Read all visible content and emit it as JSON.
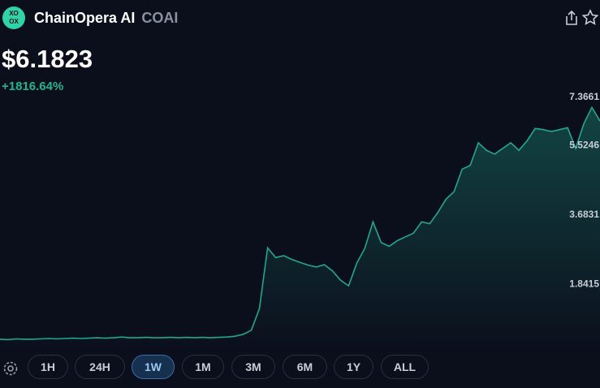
{
  "header": {
    "name": "ChainOpera AI",
    "symbol": "COAI",
    "price": "$6.1823",
    "change": "+1816.64%"
  },
  "chart_data": {
    "type": "area",
    "color": "#1fa88a",
    "values": [
      0.38,
      0.37,
      0.39,
      0.38,
      0.38,
      0.39,
      0.4,
      0.39,
      0.4,
      0.41,
      0.4,
      0.41,
      0.42,
      0.41,
      0.42,
      0.44,
      0.42,
      0.42,
      0.43,
      0.42,
      0.42,
      0.43,
      0.42,
      0.43,
      0.42,
      0.43,
      0.42,
      0.43,
      0.44,
      0.46,
      0.51,
      0.62,
      1.2,
      2.81,
      2.55,
      2.6,
      2.5,
      2.42,
      2.35,
      2.3,
      2.36,
      2.2,
      1.95,
      1.8,
      2.4,
      2.8,
      3.5,
      2.95,
      2.85,
      3.0,
      3.1,
      3.2,
      3.5,
      3.45,
      3.75,
      4.1,
      4.3,
      4.9,
      5.0,
      5.6,
      5.4,
      5.3,
      5.45,
      5.6,
      5.4,
      5.65,
      5.98,
      5.95,
      5.9,
      5.95,
      6.0,
      5.45,
      6.1,
      6.54,
      6.1823
    ],
    "ylim": [
      0.12,
      7.3661
    ],
    "yticks": [
      1.8415,
      3.6831,
      5.5246,
      7.3661
    ],
    "grid": false
  },
  "ranges": {
    "options": [
      "1H",
      "24H",
      "1W",
      "1M",
      "3M",
      "6M",
      "1Y",
      "ALL"
    ],
    "active": "1W"
  }
}
